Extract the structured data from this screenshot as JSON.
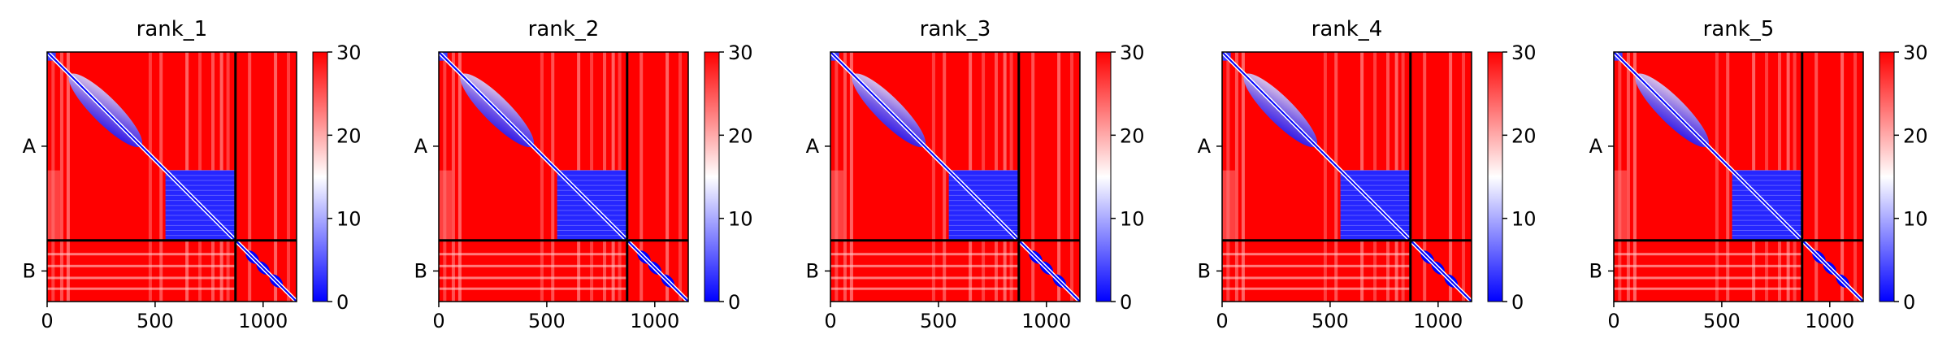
{
  "chart_data": {
    "type": "heatmap",
    "colorscale": {
      "low_color": "#0000ff",
      "mid_color": "#ffffff",
      "high_color": "#ff0000",
      "range": [
        0,
        30
      ],
      "ticks": [
        0,
        10,
        20,
        30
      ]
    },
    "x_ticks": [
      0,
      500,
      1000
    ],
    "x_range": [
      0,
      1155
    ],
    "chains": [
      {
        "label": "A",
        "start": 0,
        "end": 872
      },
      {
        "label": "B",
        "start": 872,
        "end": 1155
      }
    ],
    "panels": [
      {
        "title": "rank_1"
      },
      {
        "title": "rank_2"
      },
      {
        "title": "rank_3"
      },
      {
        "title": "rank_4"
      },
      {
        "title": "rank_5"
      }
    ]
  }
}
